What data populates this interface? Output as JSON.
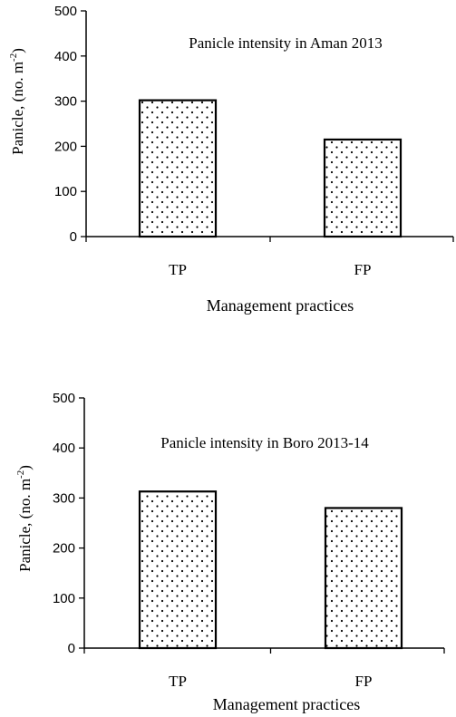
{
  "chart_data": [
    {
      "type": "bar",
      "title": "Panicle intensity in Aman 2013",
      "ylabel_main": "Panicle,  (no. m",
      "ylabel_sup": "-2",
      "ylabel_close": ")",
      "xlabel": "Management practices",
      "categories": [
        "TP",
        "FP"
      ],
      "values": [
        302,
        215
      ],
      "ylim": [
        0,
        500
      ],
      "yticks": [
        "0",
        "100",
        "200",
        "300",
        "400",
        "500"
      ],
      "bar_fill": "dotted",
      "grid": false
    },
    {
      "type": "bar",
      "title": "Panicle intensity in Boro 2013-14",
      "ylabel_main": "Panicle, (no. m",
      "ylabel_sup": "-2",
      "ylabel_close": ")",
      "xlabel": "Management practices",
      "categories": [
        "TP",
        "FP"
      ],
      "values": [
        313,
        280
      ],
      "ylim": [
        0,
        500
      ],
      "yticks": [
        "0",
        "100",
        "200",
        "300",
        "400",
        "500"
      ],
      "bar_fill": "dotted",
      "grid": false
    }
  ]
}
